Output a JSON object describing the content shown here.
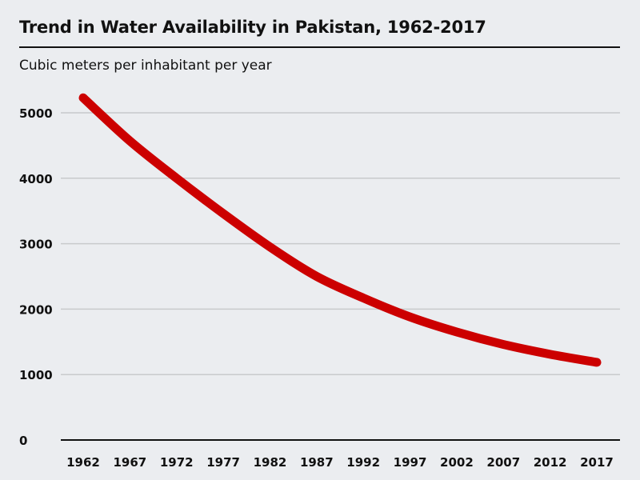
{
  "colors": {
    "background": "#ebedf0",
    "line": "#cc0000",
    "grid": "#c8cacc",
    "axis": "#111111"
  },
  "chart_data": {
    "type": "line",
    "title": "Trend in Water Availability in Pakistan, 1962-2017",
    "subtitle": "Cubic meters per inhabitant per year",
    "xlabel": "",
    "ylabel": "",
    "x": [
      "1962",
      "1967",
      "1972",
      "1977",
      "1982",
      "1987",
      "1992",
      "1997",
      "2002",
      "2007",
      "2012",
      "2017"
    ],
    "series": [
      {
        "values": [
          5229,
          4570,
          4000,
          3460,
          2950,
          2500,
          2170,
          1880,
          1650,
          1460,
          1310,
          1187
        ]
      }
    ],
    "ylim": [
      0,
      5000
    ],
    "yticks": [
      "0",
      "1000",
      "2000",
      "3000",
      "4000",
      "5000"
    ],
    "grid": true,
    "legend": "none"
  }
}
